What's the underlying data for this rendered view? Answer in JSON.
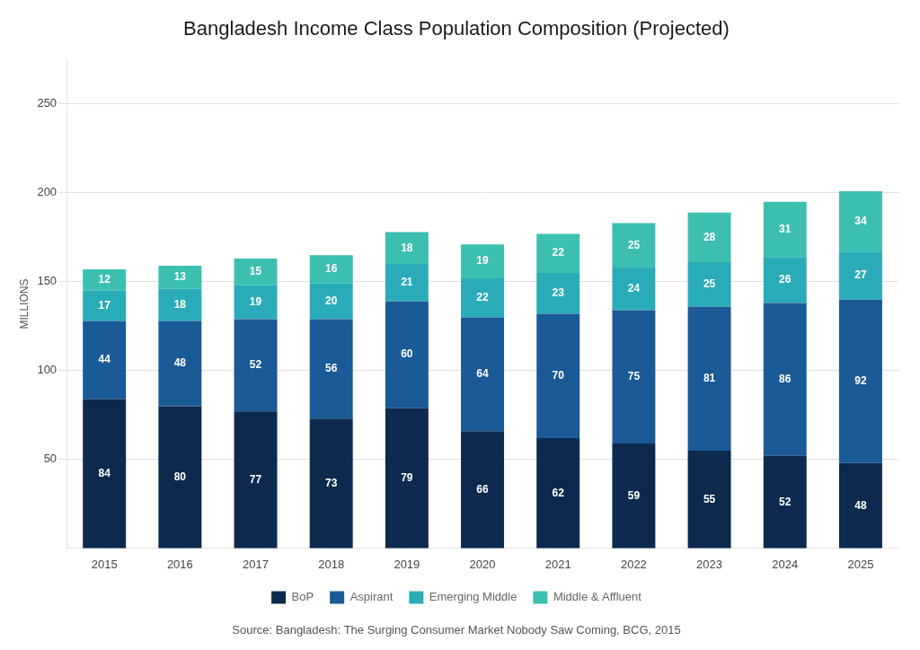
{
  "chart_data": {
    "type": "bar",
    "title": "Bangladesh Income Class Population Composition (Projected)",
    "ylabel": "MILLIONS",
    "source": "Source: Bangladesh: The Surging Consumer Market Nobody Saw Coming, BCG, 2015",
    "categories": [
      2015,
      2016,
      2017,
      2018,
      2019,
      2020,
      2021,
      2022,
      2023,
      2024,
      2025
    ],
    "series": [
      {
        "name": "BoP",
        "color": "#0d2a4e",
        "values": [
          84,
          80,
          77,
          73,
          79,
          66,
          62,
          59,
          55,
          52,
          48
        ]
      },
      {
        "name": "Aspirant",
        "color": "#1a5a96",
        "values": [
          44,
          48,
          52,
          56,
          60,
          64,
          70,
          75,
          81,
          86,
          92
        ]
      },
      {
        "name": "Emerging Middle",
        "color": "#2aacb8",
        "values": [
          17,
          18,
          19,
          20,
          21,
          22,
          23,
          24,
          25,
          26,
          27
        ]
      },
      {
        "name": "Middle & Affluent",
        "color": "#3dbfb0",
        "values": [
          12,
          13,
          15,
          16,
          18,
          19,
          22,
          25,
          28,
          31,
          34
        ]
      }
    ],
    "stacked": true,
    "data_labels": true,
    "ylim": [
      0,
      275
    ],
    "yticks": [
      50,
      100,
      150,
      200,
      250
    ],
    "grid": true,
    "legend": "bottom"
  }
}
